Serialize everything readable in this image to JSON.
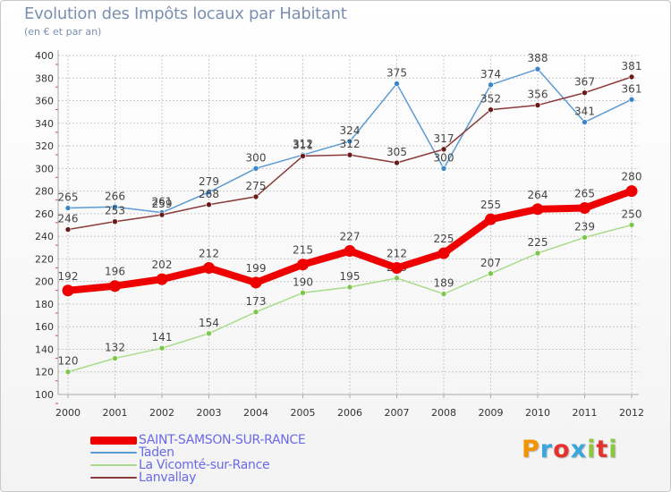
{
  "header": {
    "title": "Evolution des Impôts locaux par Habitant",
    "subtitle": "(en € et par an)"
  },
  "logo": {
    "text": "Proxiti",
    "colors": [
      "#f29400",
      "#3aa6dd",
      "#e5322d",
      "#3aa6dd",
      "#8cc63f",
      "#e5322d",
      "#8cc63f"
    ]
  },
  "colors": {
    "grid": "#c9c9c9",
    "axis": "#aaaaaa",
    "tick_text": "#333333",
    "label_text": "#444444"
  },
  "chart_data": {
    "type": "line",
    "x": [
      "2000",
      "2001",
      "2002",
      "2003",
      "2004",
      "2005",
      "2006",
      "2007",
      "2008",
      "2009",
      "2010",
      "2011",
      "2012"
    ],
    "ylim": [
      100,
      400
    ],
    "yticks": [
      100,
      120,
      140,
      160,
      180,
      200,
      220,
      240,
      260,
      280,
      300,
      320,
      340,
      360,
      380,
      400
    ],
    "grid": true,
    "legend": "bottom-left",
    "series": [
      {
        "name": "Taden",
        "color": "#5b9bd5",
        "marker": "#3a86c8",
        "width": 1.5,
        "r": 3,
        "values": [
          265,
          266,
          261,
          279,
          300,
          312,
          324,
          375,
          300,
          374,
          388,
          341,
          361
        ]
      },
      {
        "name": "La Vicomté-sur-Rance",
        "color": "#a8dc8a",
        "marker": "#7cc74a",
        "width": 1.5,
        "r": 3,
        "values": [
          120,
          132,
          141,
          154,
          173,
          190,
          195,
          203,
          189,
          207,
          225,
          239,
          250
        ]
      },
      {
        "name": "Lanvallay",
        "color": "#8b3a3a",
        "marker": "#6b1a1a",
        "width": 1.5,
        "r": 3,
        "values": [
          246,
          253,
          259,
          268,
          275,
          311,
          312,
          305,
          317,
          352,
          356,
          367,
          381
        ]
      },
      {
        "name": "SAINT-SAMSON-SUR-RANCE",
        "color": "#ee0000",
        "marker": "#ee0000",
        "width": 8,
        "r": 6.5,
        "values": [
          192,
          196,
          202,
          212,
          199,
          215,
          227,
          212,
          225,
          255,
          264,
          265,
          280
        ]
      }
    ]
  }
}
